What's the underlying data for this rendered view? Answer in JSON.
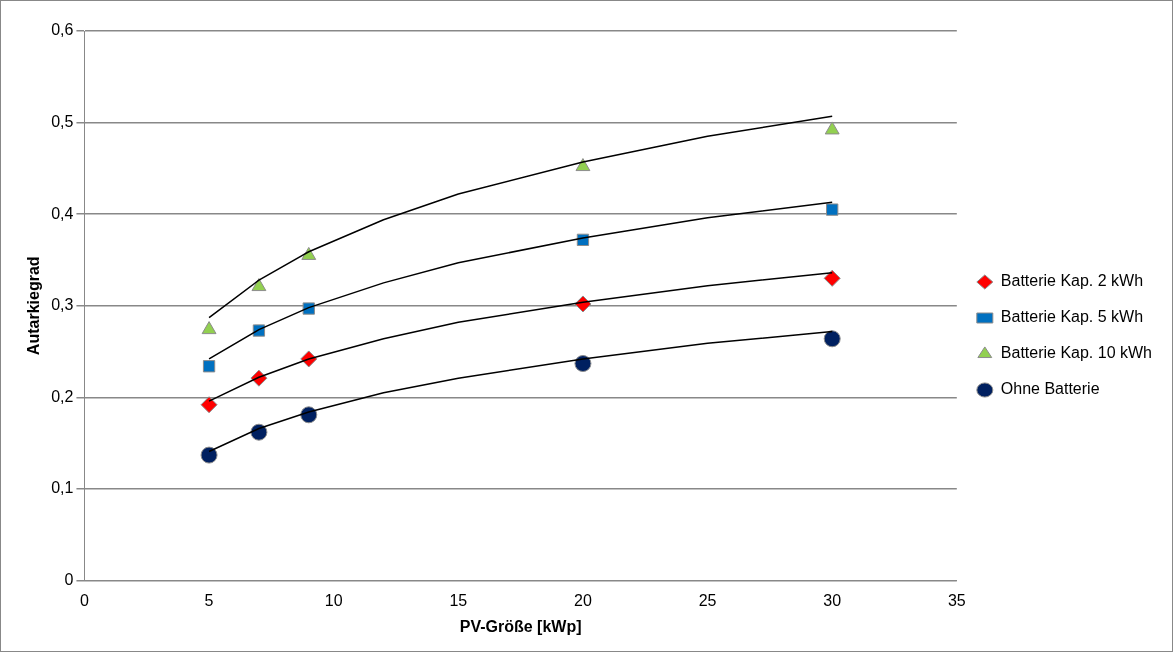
{
  "chart_data": {
    "type": "scatter",
    "xlabel": "PV-Größe [kWp]",
    "ylabel": "Autarkiegrad",
    "xlim": [
      0,
      35
    ],
    "xticks": [
      0,
      5,
      10,
      15,
      20,
      25,
      30,
      35
    ],
    "ylim": [
      0,
      0.6
    ],
    "yticks": [
      0,
      {
        "value": 0.1,
        "label": "0,1"
      },
      {
        "value": 0.2,
        "label": "0,2"
      },
      {
        "value": 0.3,
        "label": "0,3"
      },
      {
        "value": 0.4,
        "label": "0,4"
      },
      {
        "value": 0.5,
        "label": "0,5"
      },
      {
        "value": 0.6,
        "label": "0,6"
      }
    ],
    "grid": "y",
    "legend": "right",
    "x": [
      5,
      7,
      9,
      20,
      30
    ],
    "series": [
      {
        "name": "Batterie Kap. 2 kWh",
        "color": "#ff0000",
        "marker": "diamond",
        "values": [
          0.192,
          0.221,
          0.242,
          0.302,
          0.33
        ]
      },
      {
        "name": "Batterie Kap. 5 kWh",
        "color": "#0070c0",
        "marker": "square",
        "values": [
          0.234,
          0.273,
          0.297,
          0.372,
          0.405
        ]
      },
      {
        "name": "Batterie Kap. 10 kWh",
        "color": "#92d050",
        "marker": "triangle",
        "values": [
          0.274,
          0.321,
          0.355,
          0.452,
          0.492
        ]
      },
      {
        "name": "Ohne Batterie",
        "color": "#002060",
        "marker": "circle",
        "values": [
          0.137,
          0.162,
          0.181,
          0.237,
          0.264
        ]
      },
      {
        "type": "line",
        "color": "#000000",
        "marker": "none",
        "x": [
          5,
          7,
          9,
          12,
          15,
          20,
          25,
          30
        ],
        "values": [
          0.196,
          0.222,
          0.242,
          0.264,
          0.282,
          0.304,
          0.322,
          0.336
        ]
      },
      {
        "type": "line",
        "color": "#000000",
        "marker": "none",
        "x": [
          5,
          7,
          9,
          12,
          15,
          20,
          25,
          30
        ],
        "values": [
          0.242,
          0.274,
          0.298,
          0.325,
          0.347,
          0.374,
          0.396,
          0.413
        ]
      },
      {
        "type": "line",
        "color": "#000000",
        "marker": "none",
        "x": [
          5,
          7,
          9,
          12,
          15,
          20,
          25,
          30
        ],
        "values": [
          0.287,
          0.328,
          0.359,
          0.394,
          0.422,
          0.457,
          0.485,
          0.507
        ]
      },
      {
        "type": "line",
        "color": "#000000",
        "marker": "none",
        "x": [
          5,
          7,
          9,
          12,
          15,
          20,
          25,
          30
        ],
        "values": [
          0.141,
          0.166,
          0.184,
          0.205,
          0.221,
          0.242,
          0.259,
          0.272
        ]
      }
    ]
  }
}
